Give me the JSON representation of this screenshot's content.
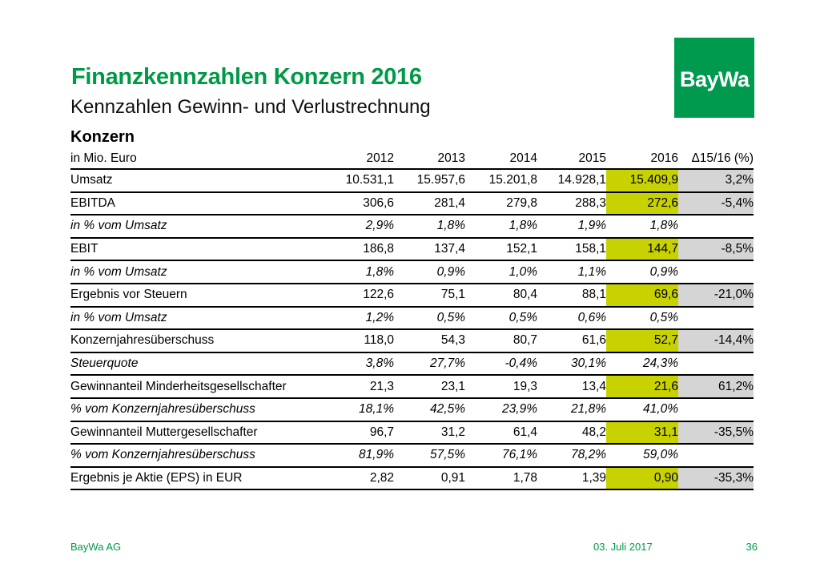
{
  "header": {
    "title": "Finanzkennzahlen Konzern 2016",
    "subtitle": "Kennzahlen Gewinn- und Verlustrechnung",
    "logo_text": "BayWa"
  },
  "colors": {
    "brand_green": "#009a46",
    "logo_green": "#009a4e",
    "highlight_yellow_green": "#c8d200",
    "delta_gray": "#d5d5d5",
    "line_black": "#000000"
  },
  "table": {
    "section_heading": "Konzern",
    "unit_label": "in Mio. Euro",
    "columns": [
      "2012",
      "2013",
      "2014",
      "2015",
      "2016",
      "Δ15/16 (%)"
    ],
    "rows": [
      {
        "label": "Umsatz",
        "italic": false,
        "values": [
          "10.531,1",
          "15.957,6",
          "15.201,8",
          "14.928,1",
          "15.409,9",
          "3,2%"
        ]
      },
      {
        "label": "EBITDA",
        "italic": false,
        "values": [
          "306,6",
          "281,4",
          "279,8",
          "288,3",
          "272,6",
          "-5,4%"
        ]
      },
      {
        "label": "in % vom Umsatz",
        "italic": true,
        "values": [
          "2,9%",
          "1,8%",
          "1,8%",
          "1,9%",
          "1,8%",
          ""
        ]
      },
      {
        "label": "EBIT",
        "italic": false,
        "values": [
          "186,8",
          "137,4",
          "152,1",
          "158,1",
          "144,7",
          "-8,5%"
        ]
      },
      {
        "label": "in % vom Umsatz",
        "italic": true,
        "values": [
          "1,8%",
          "0,9%",
          "1,0%",
          "1,1%",
          "0,9%",
          ""
        ]
      },
      {
        "label": "Ergebnis vor Steuern",
        "italic": false,
        "values": [
          "122,6",
          "75,1",
          "80,4",
          "88,1",
          "69,6",
          "-21,0%"
        ]
      },
      {
        "label": "in % vom Umsatz",
        "italic": true,
        "values": [
          "1,2%",
          "0,5%",
          "0,5%",
          "0,6%",
          "0,5%",
          ""
        ]
      },
      {
        "label": "Konzernjahresüberschuss",
        "italic": false,
        "values": [
          "118,0",
          "54,3",
          "80,7",
          "61,6",
          "52,7",
          "-14,4%"
        ]
      },
      {
        "label": "Steuerquote",
        "italic": true,
        "values": [
          "3,8%",
          "27,7%",
          "-0,4%",
          "30,1%",
          "24,3%",
          ""
        ]
      },
      {
        "label": "Gewinnanteil Minderheitsgesellschafter",
        "italic": false,
        "values": [
          "21,3",
          "23,1",
          "19,3",
          "13,4",
          "21,6",
          "61,2%"
        ]
      },
      {
        "label": "% vom Konzernjahresüberschuss",
        "italic": true,
        "values": [
          "18,1%",
          "42,5%",
          "23,9%",
          "21,8%",
          "41,0%",
          ""
        ]
      },
      {
        "label": "Gewinnanteil Muttergesellschafter",
        "italic": false,
        "values": [
          "96,7",
          "31,2",
          "61,4",
          "48,2",
          "31,1",
          "-35,5%"
        ]
      },
      {
        "label": "% vom Konzernjahresüberschuss",
        "italic": true,
        "values": [
          "81,9%",
          "57,5%",
          "76,1%",
          "78,2%",
          "59,0%",
          ""
        ]
      },
      {
        "label": "Ergebnis je Aktie (EPS) in EUR",
        "italic": false,
        "values": [
          "2,82",
          "0,91",
          "1,78",
          "1,39",
          "0,90",
          "-35,3%"
        ]
      }
    ]
  },
  "footer": {
    "company": "BayWa AG",
    "date": "03. Juli 2017",
    "page_number": "36"
  }
}
